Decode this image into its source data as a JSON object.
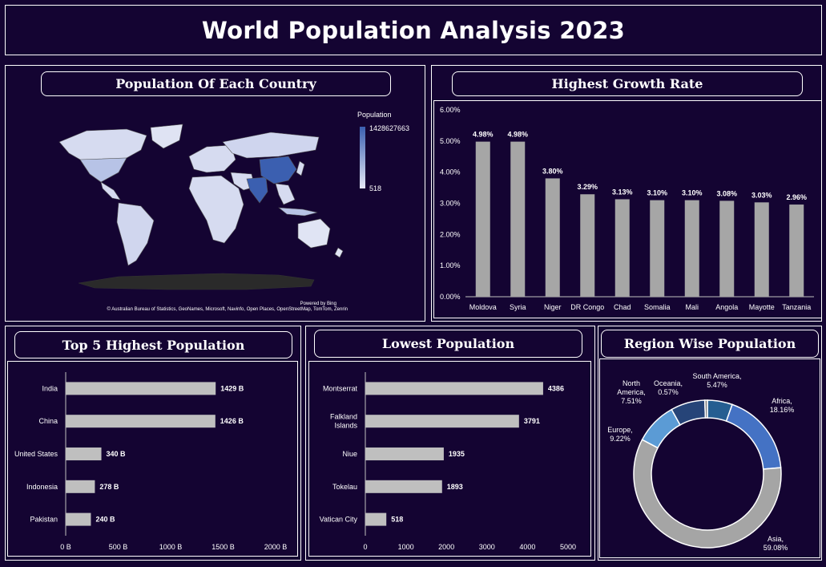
{
  "header": {
    "title": "World Population Analysis 2023"
  },
  "map_panel": {
    "title": "Population Of Each Country",
    "legend_title": "Population",
    "legend_max": "1428627663",
    "legend_min": "518",
    "powered_by": "Powered by Bing",
    "attribution": "© Australian Bureau of Statistics, GeoNames, Microsoft, Navinfo, Open Places, OpenStreetMap, TomTom, Zenrin",
    "colors": {
      "low": "#d6dbf0",
      "high": "#3b5fb0",
      "antarctica": "#2a2a2a"
    }
  },
  "growth_panel": {
    "title": "Highest Growth Rate",
    "chart_data": {
      "type": "bar",
      "categories": [
        "Moldova",
        "Syria",
        "Niger",
        "DR Congo",
        "Chad",
        "Somalia",
        "Mali",
        "Angola",
        "Mayotte",
        "Tanzania"
      ],
      "values": [
        4.98,
        4.98,
        3.8,
        3.29,
        3.13,
        3.1,
        3.1,
        3.08,
        3.03,
        2.96
      ],
      "value_labels": [
        "4.98%",
        "4.98%",
        "3.80%",
        "3.29%",
        "3.13%",
        "3.10%",
        "3.10%",
        "3.08%",
        "3.03%",
        "2.96%"
      ],
      "ylim": [
        0,
        6
      ],
      "yticks": [
        "0.00%",
        "1.00%",
        "2.00%",
        "3.00%",
        "4.00%",
        "5.00%",
        "6.00%"
      ],
      "bar_color": "#a6a6a6"
    }
  },
  "top5_panel": {
    "title": "Top 5 Highest Population",
    "chart_data": {
      "type": "bar",
      "orientation": "horizontal",
      "categories": [
        "India",
        "China",
        "United States",
        "Indonesia",
        "Pakistan"
      ],
      "values": [
        1429,
        1426,
        340,
        278,
        240
      ],
      "value_labels": [
        "1429 B",
        "1426 B",
        "340 B",
        "278 B",
        "240 B"
      ],
      "xlim": [
        0,
        2000
      ],
      "xticks": [
        "0 B",
        "500 B",
        "1000 B",
        "1500 B",
        "2000 B"
      ],
      "bar_color": "#bfbfbf"
    }
  },
  "lowest_panel": {
    "title": "Lowest Population",
    "chart_data": {
      "type": "bar",
      "orientation": "horizontal",
      "categories": [
        "Montserrat",
        "Falkland Islands",
        "Niue",
        "Tokelau",
        "Vatican City"
      ],
      "category_lines": [
        [
          "Montserrat"
        ],
        [
          "Falkland",
          "Islands"
        ],
        [
          "Niue"
        ],
        [
          "Tokelau"
        ],
        [
          "Vatican City"
        ]
      ],
      "values": [
        4386,
        3791,
        1935,
        1893,
        518
      ],
      "value_labels": [
        "4386",
        "3791",
        "1935",
        "1893",
        "518"
      ],
      "xlim": [
        0,
        5000
      ],
      "xticks": [
        "0",
        "1000",
        "2000",
        "3000",
        "4000",
        "5000"
      ],
      "bar_color": "#bfbfbf"
    }
  },
  "region_panel": {
    "title": "Region Wise Population",
    "chart_data": {
      "type": "pie",
      "donut": true,
      "slices": [
        {
          "label": "South America",
          "value": 5.47,
          "text": [
            "South America,",
            "5.47%"
          ],
          "color": "#255e91"
        },
        {
          "label": "Africa",
          "value": 18.16,
          "text": [
            "Africa,",
            "18.16%"
          ],
          "color": "#4472c4"
        },
        {
          "label": "Asia",
          "value": 59.08,
          "text": [
            "Asia,",
            "59.08%"
          ],
          "color": "#a5a5a5"
        },
        {
          "label": "Europe",
          "value": 9.22,
          "text": [
            "Europe,",
            "9.22%"
          ],
          "color": "#5b9bd5"
        },
        {
          "label": "North America",
          "value": 7.51,
          "text": [
            "North",
            "America,",
            "7.51%"
          ],
          "color": "#264478"
        },
        {
          "label": "Oceania",
          "value": 0.57,
          "text": [
            "Oceania,",
            "0.57%"
          ],
          "color": "#7f7f7f"
        }
      ]
    }
  }
}
